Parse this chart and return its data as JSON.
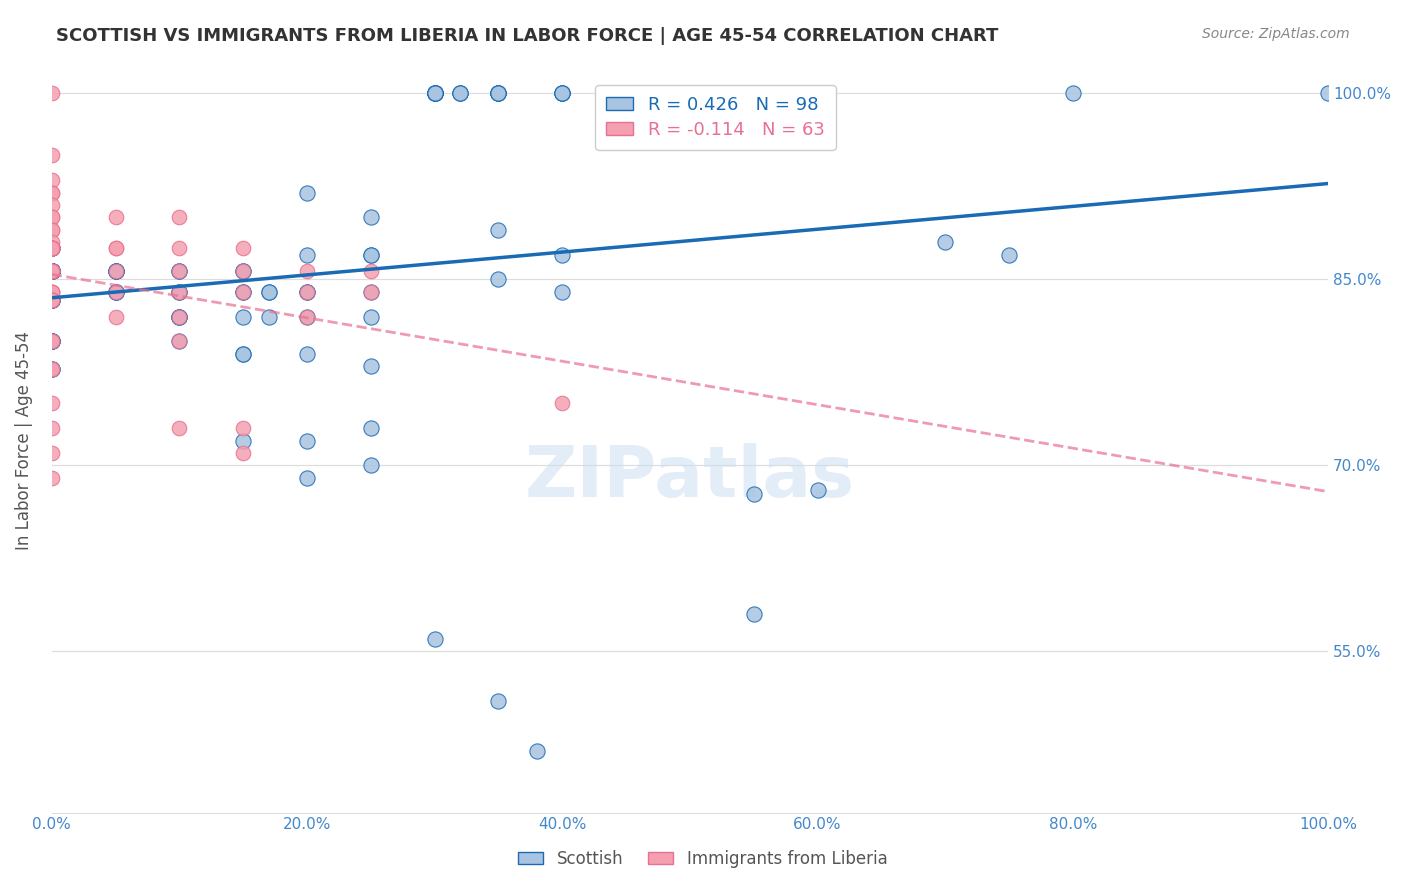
{
  "title": "SCOTTISH VS IMMIGRANTS FROM LIBERIA IN LABOR FORCE | AGE 45-54 CORRELATION CHART",
  "source": "Source: ZipAtlas.com",
  "ylabel": "In Labor Force | Age 45-54",
  "x_range": [
    0.0,
    1.0
  ],
  "y_range": [
    0.42,
    1.02
  ],
  "legend_label_blue": "Scottish",
  "legend_label_pink": "Immigrants from Liberia",
  "R_blue": 0.426,
  "N_blue": 98,
  "R_pink": -0.114,
  "N_pink": 63,
  "watermark": "ZIPatlas",
  "blue_color": "#a8c4e0",
  "pink_color": "#f4a0b0",
  "line_blue": "#1a6bb5",
  "line_pink": "#e87090",
  "grid_color": "#dddddd",
  "title_color": "#333333",
  "axis_label_color": "#555555",
  "right_tick_color": "#4488cc",
  "bottom_tick_color": "#4488cc",
  "blue_scatter": [
    [
      0.0,
      0.857
    ],
    [
      0.0,
      0.857
    ],
    [
      0.0,
      0.857
    ],
    [
      0.0,
      0.875
    ],
    [
      0.0,
      0.857
    ],
    [
      0.0,
      0.857
    ],
    [
      0.0,
      0.857
    ],
    [
      0.0,
      0.857
    ],
    [
      0.0,
      0.857
    ],
    [
      0.0,
      0.857
    ],
    [
      0.0,
      0.857
    ],
    [
      0.0,
      0.857
    ],
    [
      0.0,
      0.857
    ],
    [
      0.0,
      0.833
    ],
    [
      0.0,
      0.833
    ],
    [
      0.0,
      0.833
    ],
    [
      0.0,
      0.833
    ],
    [
      0.0,
      0.875
    ],
    [
      0.0,
      0.8
    ],
    [
      0.0,
      0.8
    ],
    [
      0.0,
      0.8
    ],
    [
      0.0,
      0.8
    ],
    [
      0.0,
      0.778
    ],
    [
      0.0,
      0.778
    ],
    [
      0.05,
      0.857
    ],
    [
      0.05,
      0.857
    ],
    [
      0.05,
      0.857
    ],
    [
      0.05,
      0.84
    ],
    [
      0.05,
      0.84
    ],
    [
      0.05,
      0.84
    ],
    [
      0.05,
      0.857
    ],
    [
      0.1,
      0.857
    ],
    [
      0.1,
      0.857
    ],
    [
      0.1,
      0.84
    ],
    [
      0.1,
      0.84
    ],
    [
      0.1,
      0.82
    ],
    [
      0.1,
      0.82
    ],
    [
      0.1,
      0.82
    ],
    [
      0.1,
      0.8
    ],
    [
      0.15,
      0.857
    ],
    [
      0.15,
      0.857
    ],
    [
      0.15,
      0.84
    ],
    [
      0.15,
      0.84
    ],
    [
      0.15,
      0.82
    ],
    [
      0.15,
      0.79
    ],
    [
      0.15,
      0.79
    ],
    [
      0.15,
      0.72
    ],
    [
      0.17,
      0.84
    ],
    [
      0.17,
      0.84
    ],
    [
      0.17,
      0.82
    ],
    [
      0.2,
      0.92
    ],
    [
      0.2,
      0.87
    ],
    [
      0.2,
      0.84
    ],
    [
      0.2,
      0.84
    ],
    [
      0.2,
      0.82
    ],
    [
      0.2,
      0.79
    ],
    [
      0.2,
      0.72
    ],
    [
      0.2,
      0.69
    ],
    [
      0.25,
      0.9
    ],
    [
      0.25,
      0.87
    ],
    [
      0.25,
      0.87
    ],
    [
      0.25,
      0.84
    ],
    [
      0.25,
      0.82
    ],
    [
      0.25,
      0.78
    ],
    [
      0.25,
      0.73
    ],
    [
      0.25,
      0.7
    ],
    [
      0.3,
      1.0
    ],
    [
      0.3,
      1.0
    ],
    [
      0.3,
      1.0
    ],
    [
      0.3,
      1.0
    ],
    [
      0.3,
      1.0
    ],
    [
      0.3,
      1.0
    ],
    [
      0.3,
      1.0
    ],
    [
      0.3,
      1.0
    ],
    [
      0.32,
      1.0
    ],
    [
      0.32,
      1.0
    ],
    [
      0.32,
      1.0
    ],
    [
      0.35,
      1.0
    ],
    [
      0.35,
      1.0
    ],
    [
      0.35,
      1.0
    ],
    [
      0.35,
      1.0
    ],
    [
      0.35,
      1.0
    ],
    [
      0.35,
      0.89
    ],
    [
      0.35,
      0.85
    ],
    [
      0.4,
      1.0
    ],
    [
      0.4,
      1.0
    ],
    [
      0.4,
      1.0
    ],
    [
      0.4,
      1.0
    ],
    [
      0.4,
      0.87
    ],
    [
      0.4,
      0.84
    ],
    [
      0.3,
      0.56
    ],
    [
      0.35,
      0.51
    ],
    [
      0.38,
      0.47
    ],
    [
      0.55,
      0.677
    ],
    [
      0.55,
      0.58
    ],
    [
      0.6,
      0.68
    ],
    [
      0.7,
      0.88
    ],
    [
      0.75,
      0.87
    ],
    [
      0.8,
      1.0
    ],
    [
      1.0,
      1.0
    ]
  ],
  "pink_scatter": [
    [
      0.0,
      1.0
    ],
    [
      0.0,
      0.95
    ],
    [
      0.0,
      0.93
    ],
    [
      0.0,
      0.92
    ],
    [
      0.0,
      0.92
    ],
    [
      0.0,
      0.91
    ],
    [
      0.0,
      0.9
    ],
    [
      0.0,
      0.9
    ],
    [
      0.0,
      0.89
    ],
    [
      0.0,
      0.89
    ],
    [
      0.0,
      0.88
    ],
    [
      0.0,
      0.875
    ],
    [
      0.0,
      0.875
    ],
    [
      0.0,
      0.875
    ],
    [
      0.0,
      0.875
    ],
    [
      0.0,
      0.875
    ],
    [
      0.0,
      0.875
    ],
    [
      0.0,
      0.875
    ],
    [
      0.0,
      0.857
    ],
    [
      0.0,
      0.857
    ],
    [
      0.0,
      0.857
    ],
    [
      0.0,
      0.857
    ],
    [
      0.0,
      0.857
    ],
    [
      0.0,
      0.857
    ],
    [
      0.0,
      0.857
    ],
    [
      0.0,
      0.84
    ],
    [
      0.0,
      0.84
    ],
    [
      0.0,
      0.84
    ],
    [
      0.0,
      0.833
    ],
    [
      0.0,
      0.833
    ],
    [
      0.0,
      0.833
    ],
    [
      0.0,
      0.8
    ],
    [
      0.0,
      0.8
    ],
    [
      0.0,
      0.778
    ],
    [
      0.0,
      0.778
    ],
    [
      0.0,
      0.75
    ],
    [
      0.0,
      0.73
    ],
    [
      0.0,
      0.71
    ],
    [
      0.0,
      0.69
    ],
    [
      0.05,
      0.9
    ],
    [
      0.05,
      0.875
    ],
    [
      0.05,
      0.875
    ],
    [
      0.05,
      0.857
    ],
    [
      0.05,
      0.84
    ],
    [
      0.05,
      0.82
    ],
    [
      0.1,
      0.9
    ],
    [
      0.1,
      0.875
    ],
    [
      0.1,
      0.857
    ],
    [
      0.1,
      0.84
    ],
    [
      0.1,
      0.82
    ],
    [
      0.1,
      0.8
    ],
    [
      0.1,
      0.73
    ],
    [
      0.15,
      0.875
    ],
    [
      0.15,
      0.857
    ],
    [
      0.15,
      0.84
    ],
    [
      0.15,
      0.73
    ],
    [
      0.15,
      0.71
    ],
    [
      0.2,
      0.857
    ],
    [
      0.2,
      0.84
    ],
    [
      0.2,
      0.82
    ],
    [
      0.25,
      0.857
    ],
    [
      0.25,
      0.84
    ],
    [
      0.4,
      0.75
    ]
  ]
}
